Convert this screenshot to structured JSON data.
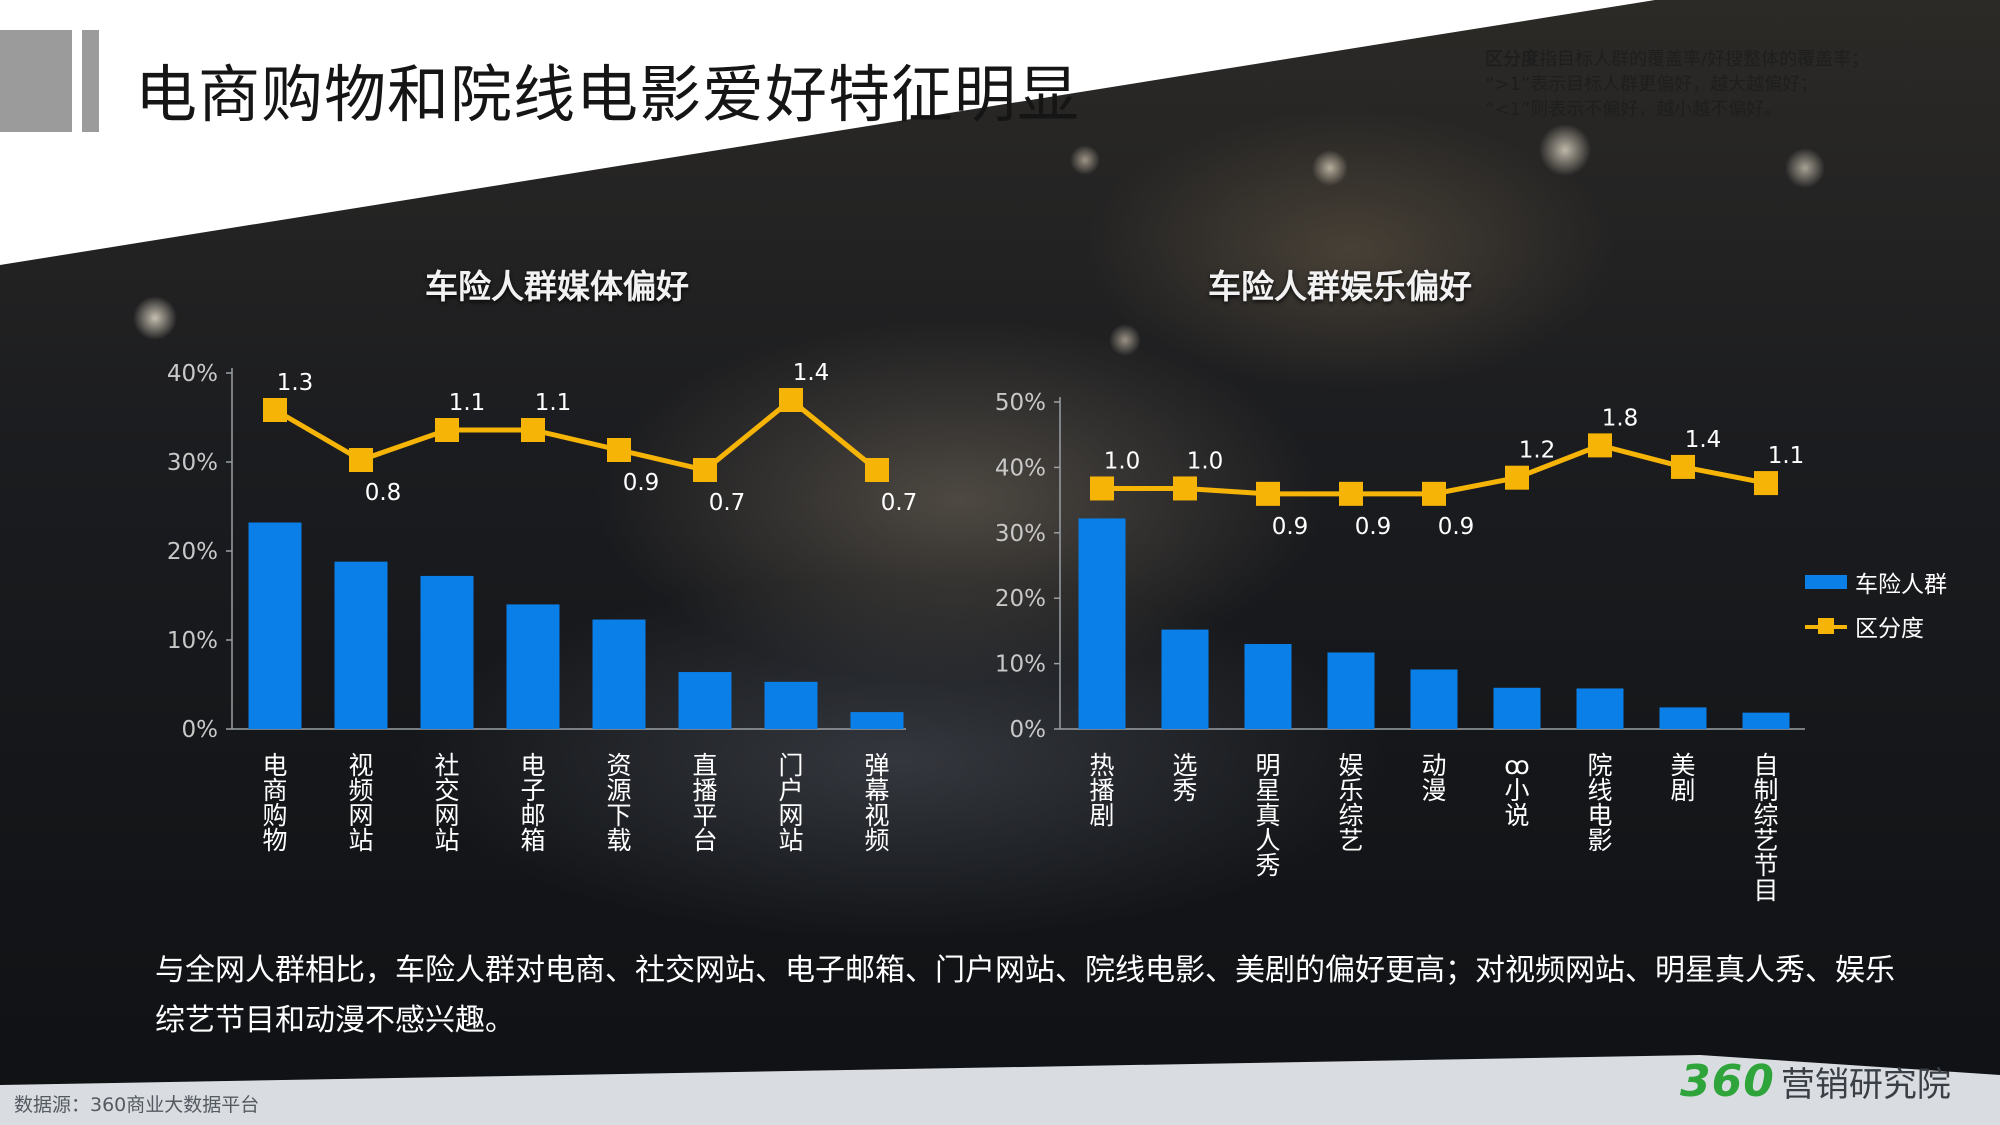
{
  "title": "电商购物和院线电影爱好特征明显",
  "note": {
    "term": "区分度",
    "line1": "指目标人群的覆盖率/好搜整体的覆盖率；",
    "line2": "“>1”表示目标人群更偏好，越大越偏好；",
    "line3": "“<1”则表示不偏好，越小越不偏好。"
  },
  "legend": {
    "bar_label": "车险人群",
    "line_label": "区分度"
  },
  "summary": "与全网人群相比，车险人群对电商、社交网站、电子邮箱、门户网站、院线电影、美剧的偏好更高；对视频网站、明星真人秀、娱乐综艺节目和动漫不感兴趣。",
  "source": "数据源：360商业大数据平台",
  "brand": {
    "number": "360",
    "text": "营销研究院"
  },
  "colors": {
    "bar": "#0b7fe8",
    "line": "#f6b407",
    "axis": "#9aa0a6",
    "tick_text": "#c8c8c8"
  },
  "chart_data": [
    {
      "type": "bar",
      "title": "车险人群媒体偏好",
      "categories": [
        "电商购物",
        "视频网站",
        "社交网站",
        "电子邮箱",
        "资源下载",
        "直播平台",
        "门户网站",
        "弹幕视频"
      ],
      "series": [
        {
          "name": "车险人群",
          "type": "bar",
          "values": [
            23.2,
            18.8,
            17.2,
            14.0,
            12.3,
            6.4,
            5.3,
            1.9
          ]
        },
        {
          "name": "区分度",
          "type": "line",
          "values": [
            1.3,
            0.8,
            1.1,
            1.1,
            0.9,
            0.7,
            1.4,
            0.7
          ],
          "labels": [
            "1.3",
            "0.8",
            "1.1",
            "1.1",
            "0.9",
            "0.7",
            "1.4",
            "0.7"
          ],
          "label_positions": [
            "above",
            "below",
            "above",
            "above",
            "below",
            "below",
            "above",
            "below"
          ]
        }
      ],
      "ylim": [
        0,
        40
      ],
      "yticks": [
        "0%",
        "10%",
        "20%",
        "30%",
        "40%"
      ]
    },
    {
      "type": "bar",
      "title": "车险人群娱乐偏好",
      "categories": [
        "热播剧",
        "选秀",
        "明星真人秀",
        "娱乐综艺",
        "动漫",
        "小说",
        "院线电影",
        "美剧",
        "自制综艺节目"
      ],
      "category_display": [
        "热播剧",
        "选秀",
        "明星真人秀",
        "娱乐综艺",
        "动漫",
        "·o·小说",
        "院线电影",
        "美剧",
        "自制综艺节目"
      ],
      "series": [
        {
          "name": "车险人群",
          "type": "bar",
          "values": [
            32.2,
            15.2,
            13.0,
            11.7,
            9.1,
            6.3,
            6.2,
            3.3,
            2.5
          ]
        },
        {
          "name": "区分度",
          "type": "line",
          "values": [
            1.0,
            1.0,
            0.9,
            0.9,
            0.9,
            1.2,
            1.8,
            1.4,
            1.1
          ],
          "labels": [
            "1.0",
            "1.0",
            "0.9",
            "0.9",
            "0.9",
            "1.2",
            "1.8",
            "1.4",
            "1.1"
          ],
          "label_positions": [
            "above",
            "above",
            "below",
            "below",
            "below",
            "above",
            "above",
            "above",
            "above"
          ]
        }
      ],
      "ylim": [
        0,
        50
      ],
      "yticks": [
        "0%",
        "10%",
        "20%",
        "30%",
        "40%",
        "50%"
      ]
    }
  ]
}
